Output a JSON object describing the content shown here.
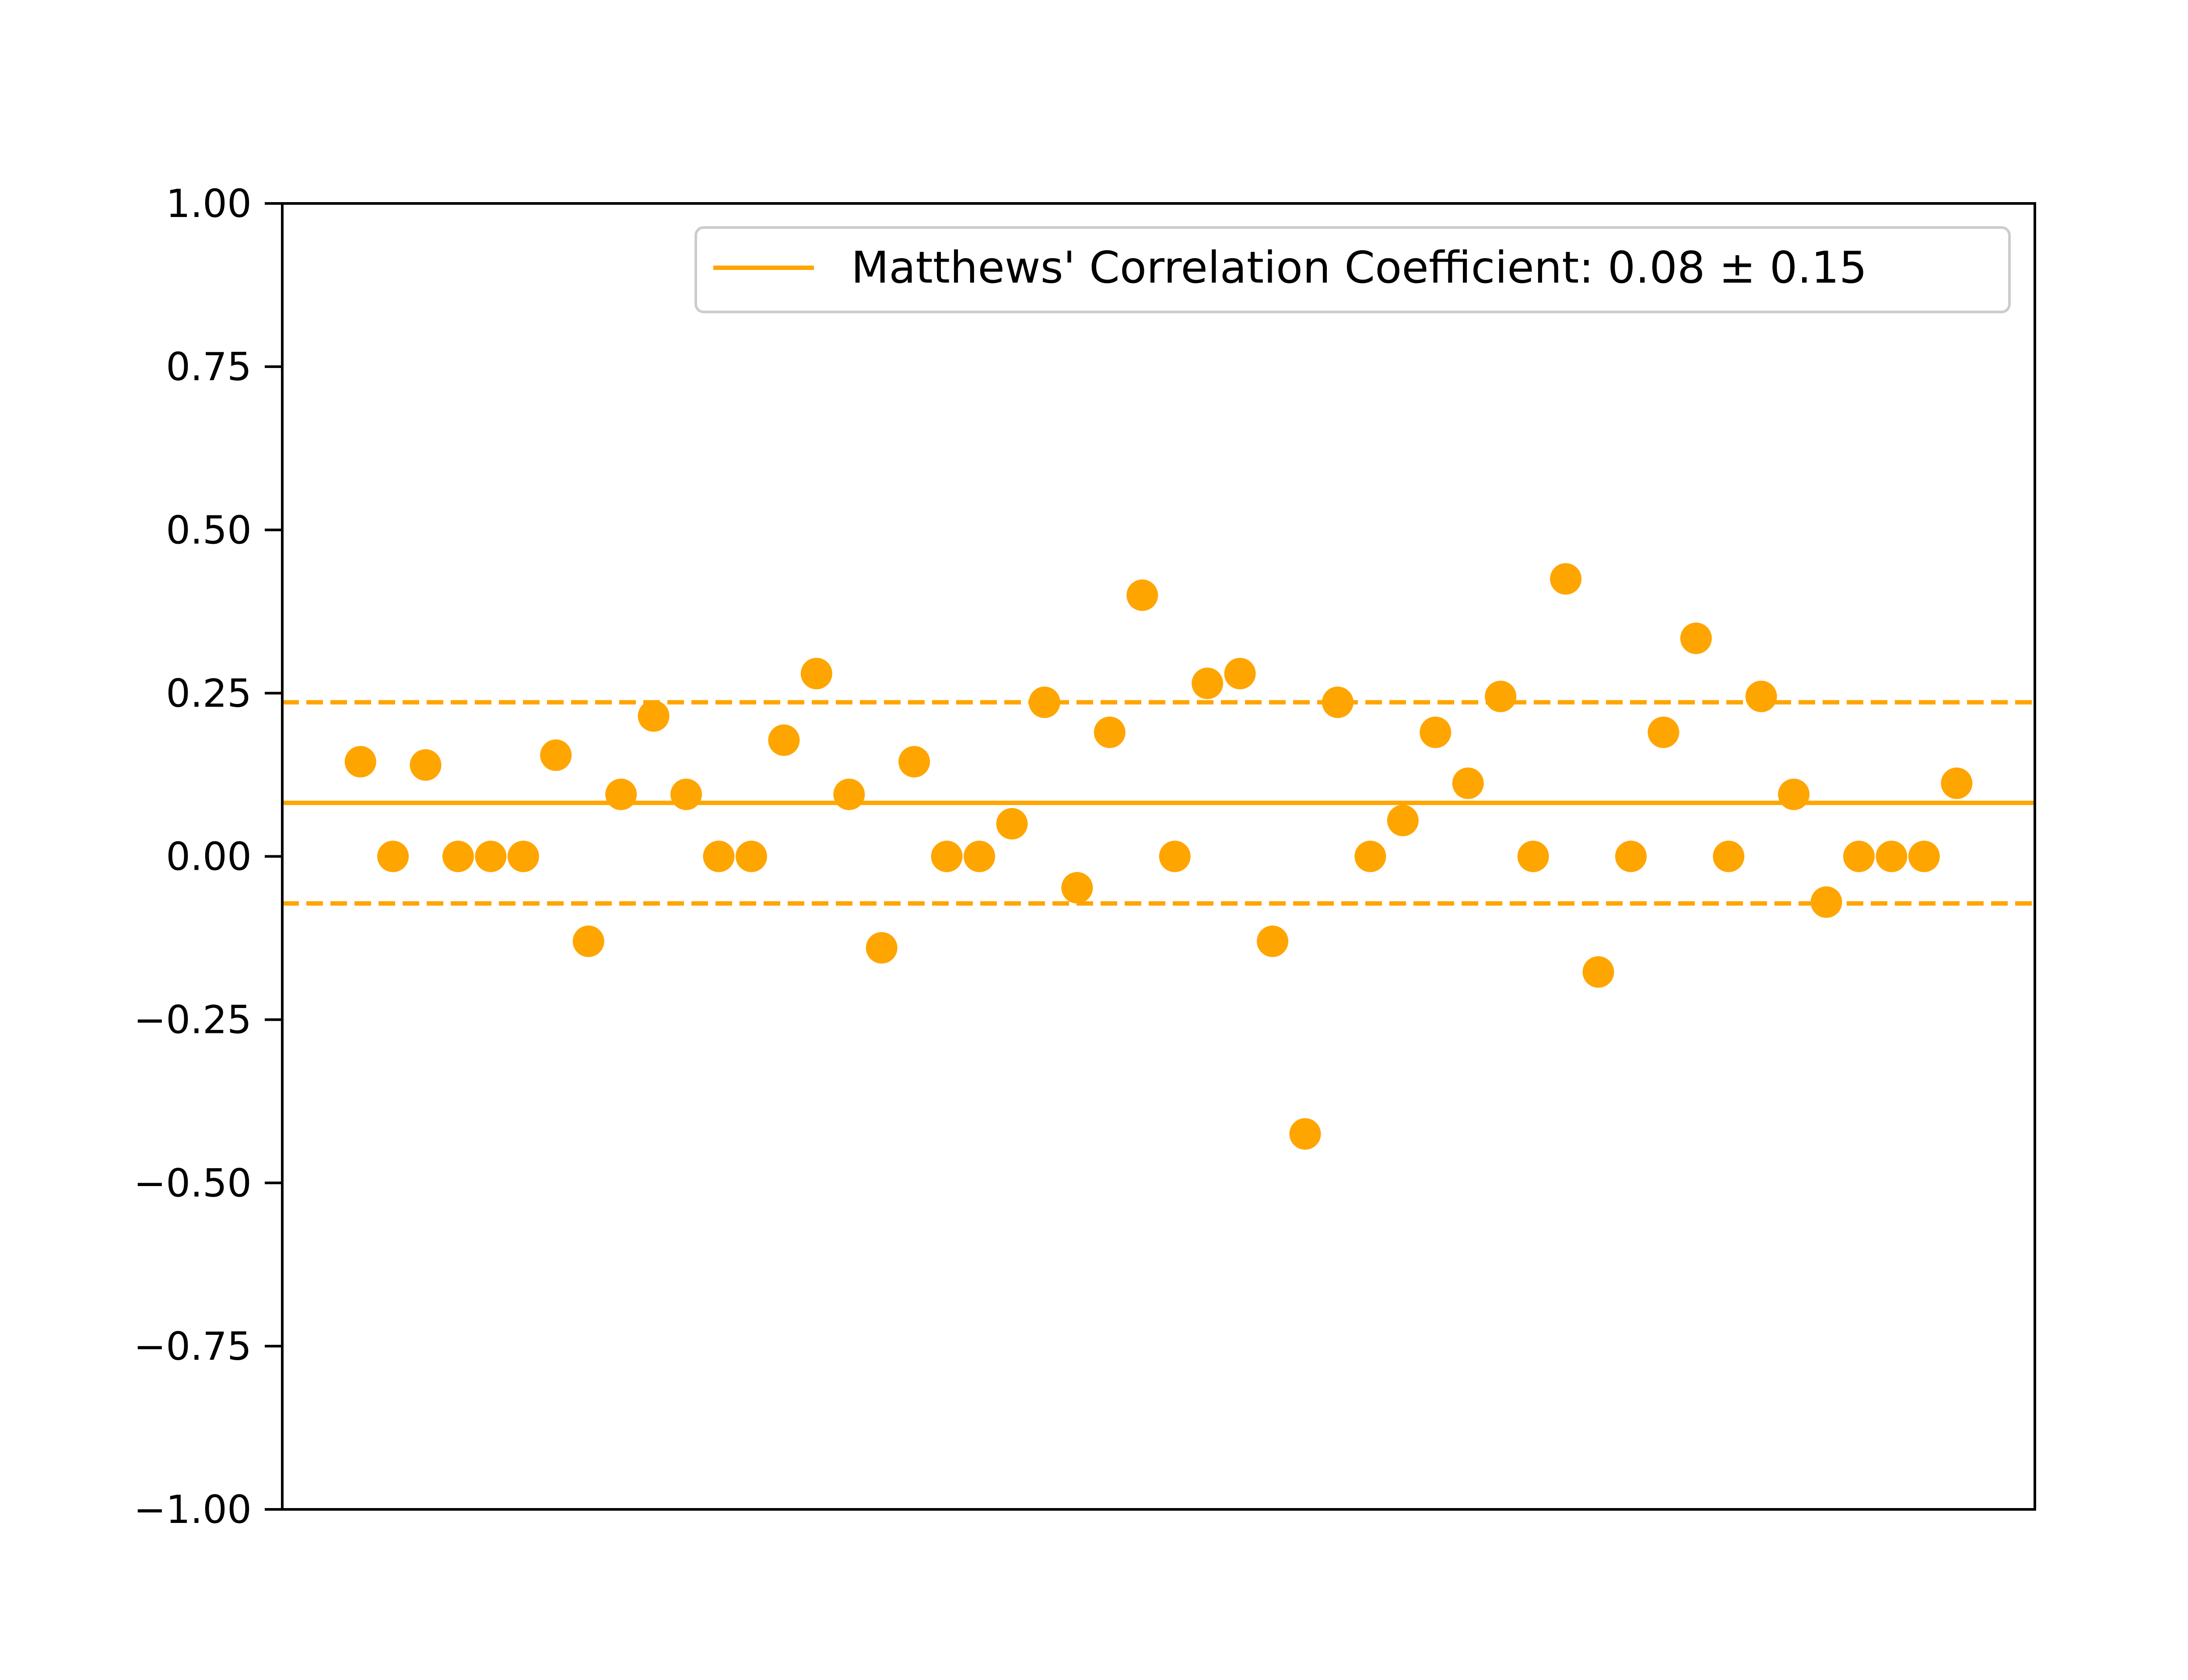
{
  "chart_data": {
    "type": "scatter",
    "ylim": [
      -1.0,
      1.0
    ],
    "xlim": [
      -2.4,
      51.4
    ],
    "grid": false,
    "legend_position": "top-right",
    "y_ticks": [
      {
        "value": 1.0,
        "label": "1.00"
      },
      {
        "value": 0.75,
        "label": "0.75"
      },
      {
        "value": 0.5,
        "label": "0.50"
      },
      {
        "value": 0.25,
        "label": "0.25"
      },
      {
        "value": 0.0,
        "label": "0.00"
      },
      {
        "value": -0.25,
        "label": "−0.25"
      },
      {
        "value": -0.5,
        "label": "−0.50"
      },
      {
        "value": -0.75,
        "label": "−0.75"
      },
      {
        "value": -1.0,
        "label": "−1.00"
      }
    ],
    "points": [
      0.145,
      0.0,
      0.14,
      0.0,
      0.0,
      0.0,
      0.155,
      -0.13,
      0.095,
      0.215,
      0.095,
      0.0,
      0.0,
      0.178,
      0.28,
      0.095,
      -0.14,
      0.145,
      0.0,
      0.0,
      0.05,
      0.236,
      -0.048,
      0.19,
      0.4,
      0.0,
      0.265,
      0.28,
      -0.13,
      -0.425,
      0.236,
      0.0,
      0.055,
      0.19,
      0.112,
      0.245,
      0.0,
      0.425,
      -0.177,
      0.0,
      0.19,
      0.334,
      0.0,
      0.245,
      0.095,
      -0.07,
      0.0,
      0.0,
      0.0,
      0.112
    ],
    "mean": 0.082,
    "upper_band": 0.236,
    "lower_band": -0.072,
    "legend": {
      "label": "Matthews' Correlation Coefficient: 0.08 ± 0.15"
    },
    "color": "#ffa500"
  }
}
